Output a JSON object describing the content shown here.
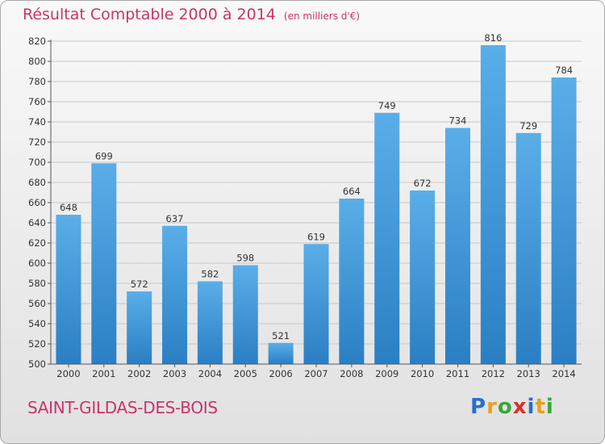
{
  "header": {
    "title": "Résultat Comptable 2000 à 2014",
    "subtitle": "(en milliers d'€)"
  },
  "footer": {
    "commune": "SAINT-GILDAS-DES-BOIS",
    "logo_letters": [
      "P",
      "r",
      "o",
      "x",
      "i",
      "t",
      "i"
    ],
    "logo_colors": [
      "#2a6fcf",
      "#e8a020",
      "#3aa63a",
      "#d4312a",
      "#2a6fcf",
      "#e8a020",
      "#3aa63a"
    ]
  },
  "colors": {
    "bar_top": "#5aaee8",
    "bar_bottom": "#2a7fc4",
    "title": "#c8346a",
    "grid": "#c8c8c8"
  },
  "chart_data": {
    "type": "bar",
    "title": "Résultat Comptable 2000 à 2014",
    "subtitle": "(en milliers d'€)",
    "xlabel": "",
    "ylabel": "",
    "categories": [
      "2000",
      "2001",
      "2002",
      "2003",
      "2004",
      "2005",
      "2006",
      "2007",
      "2008",
      "2009",
      "2010",
      "2011",
      "2012",
      "2013",
      "2014"
    ],
    "values": [
      648,
      699,
      572,
      637,
      582,
      598,
      521,
      619,
      664,
      749,
      672,
      734,
      816,
      729,
      784
    ],
    "ylim": [
      500,
      820
    ],
    "yticks": [
      500,
      520,
      540,
      560,
      580,
      600,
      620,
      640,
      660,
      680,
      700,
      720,
      740,
      760,
      780,
      800,
      820
    ],
    "grid": true,
    "legend": "none"
  }
}
